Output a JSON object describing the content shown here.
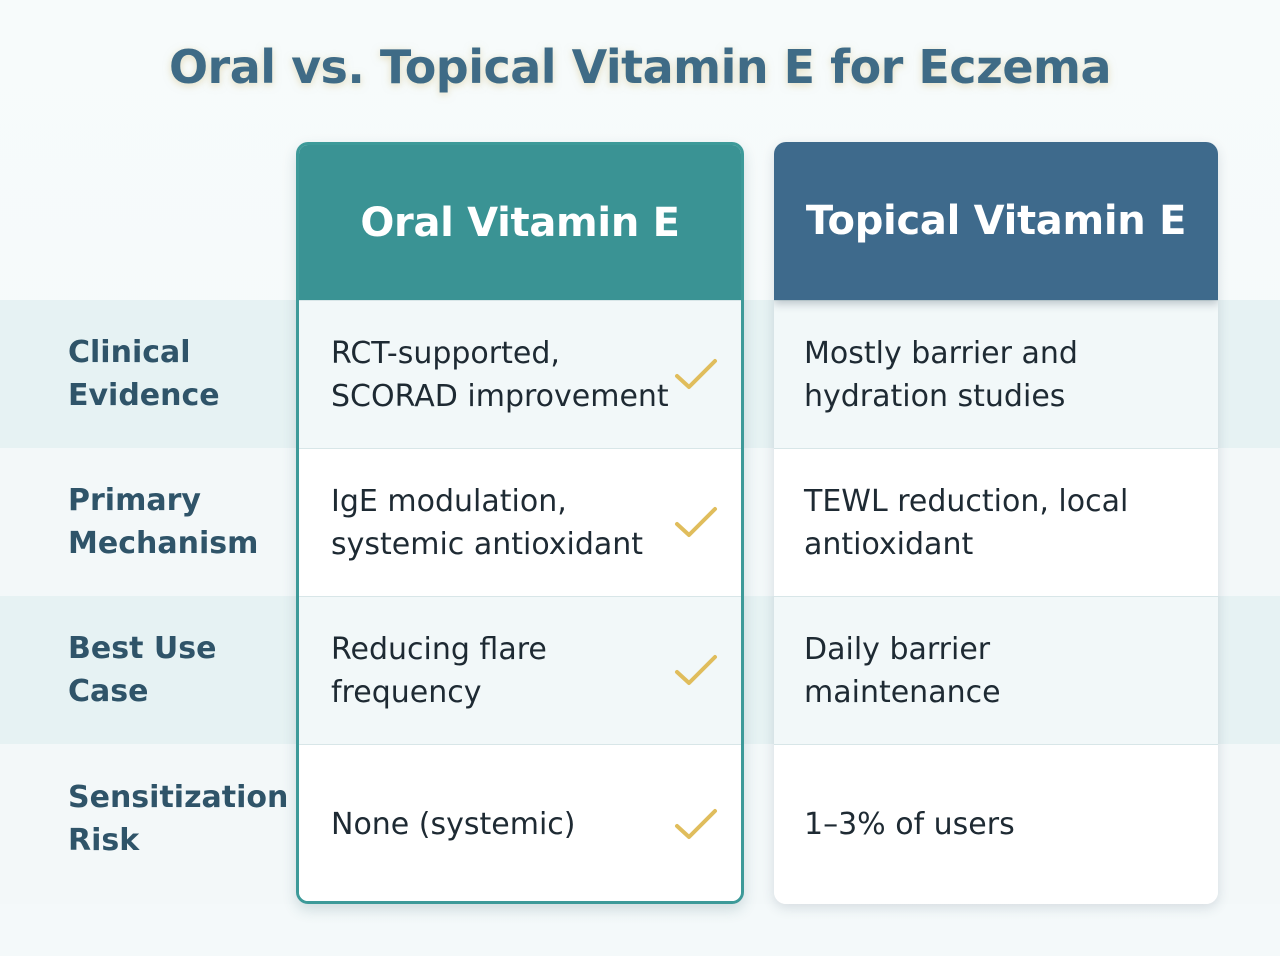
{
  "title": "Oral vs. Topical Vitamin E for Eczema",
  "columns": {
    "oral": {
      "header": "Oral Vitamin E",
      "color": "#3a9394",
      "highlighted": true
    },
    "topical": {
      "header": "Topical Vitamin E",
      "color": "#3e6a8c"
    }
  },
  "check_color": "#e0bd5c",
  "check_icon": "check-icon",
  "rows": [
    {
      "label": "Clinical\nEvidence",
      "oral": "RCT-supported,\nSCORAD improvement",
      "topical": "Mostly barrier and\nhydration studies"
    },
    {
      "label": "Primary\nMechanism",
      "oral": "IgE modulation,\nsystemic antioxidant",
      "topical": "TEWL reduction, local\nantioxidant"
    },
    {
      "label": "Best Use\nCase",
      "oral": "Reducing flare\nfrequency",
      "topical": "Daily barrier\nmaintenance"
    },
    {
      "label": "Sensitization\nRisk",
      "oral": "None (systemic)",
      "topical": "1–3% of users"
    }
  ]
}
